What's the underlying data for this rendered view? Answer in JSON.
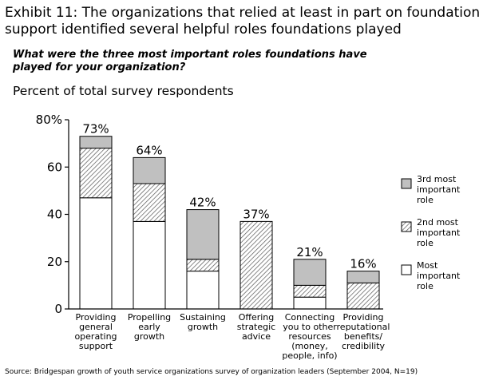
{
  "header": {
    "title_line1": "Exhibit 11: The organizations that relied at least in part on foundation",
    "title_line2": "support identified several helpful roles foundations played",
    "question": "What were the three most important roles foundations have played for your organization?",
    "ylabel": "Percent of total survey respondents",
    "source": "Source: Bridgespan growth of youth service organizations survey of organization leaders (September 2004, N=19)"
  },
  "chart_data": {
    "type": "bar",
    "stacked": true,
    "ylim": [
      0,
      80
    ],
    "yticks": [
      "0",
      "20",
      "40",
      "60",
      "80%"
    ],
    "categories": [
      [
        "Providing",
        "general",
        "operating",
        "support"
      ],
      [
        "Propelling",
        "early",
        "growth"
      ],
      [
        "Sustaining",
        "growth"
      ],
      [
        "Offering",
        "strategic",
        "advice"
      ],
      [
        "Connecting",
        "you to other",
        "resources",
        "(money,",
        "people, info)"
      ],
      [
        "Providing",
        "reputational",
        "benefits/",
        "credibility"
      ]
    ],
    "totals": [
      "73%",
      "64%",
      "42%",
      "37%",
      "21%",
      "16%"
    ],
    "series": [
      {
        "name": "Most important role",
        "legend_lines": [
          "Most",
          "important",
          "role"
        ],
        "fill": "white",
        "values": [
          47,
          37,
          16,
          0,
          5,
          0
        ]
      },
      {
        "name": "2nd most important role",
        "legend_lines": [
          "2nd most",
          "important",
          "role"
        ],
        "fill": "hatch",
        "values": [
          21,
          16,
          5,
          37,
          5,
          11
        ]
      },
      {
        "name": "3rd most important role",
        "legend_lines": [
          "3rd most",
          "important",
          "role"
        ],
        "fill": "#c0c0c0",
        "values": [
          5,
          11,
          21,
          0,
          11,
          5
        ]
      }
    ],
    "grid": false,
    "legend_position": "right"
  }
}
